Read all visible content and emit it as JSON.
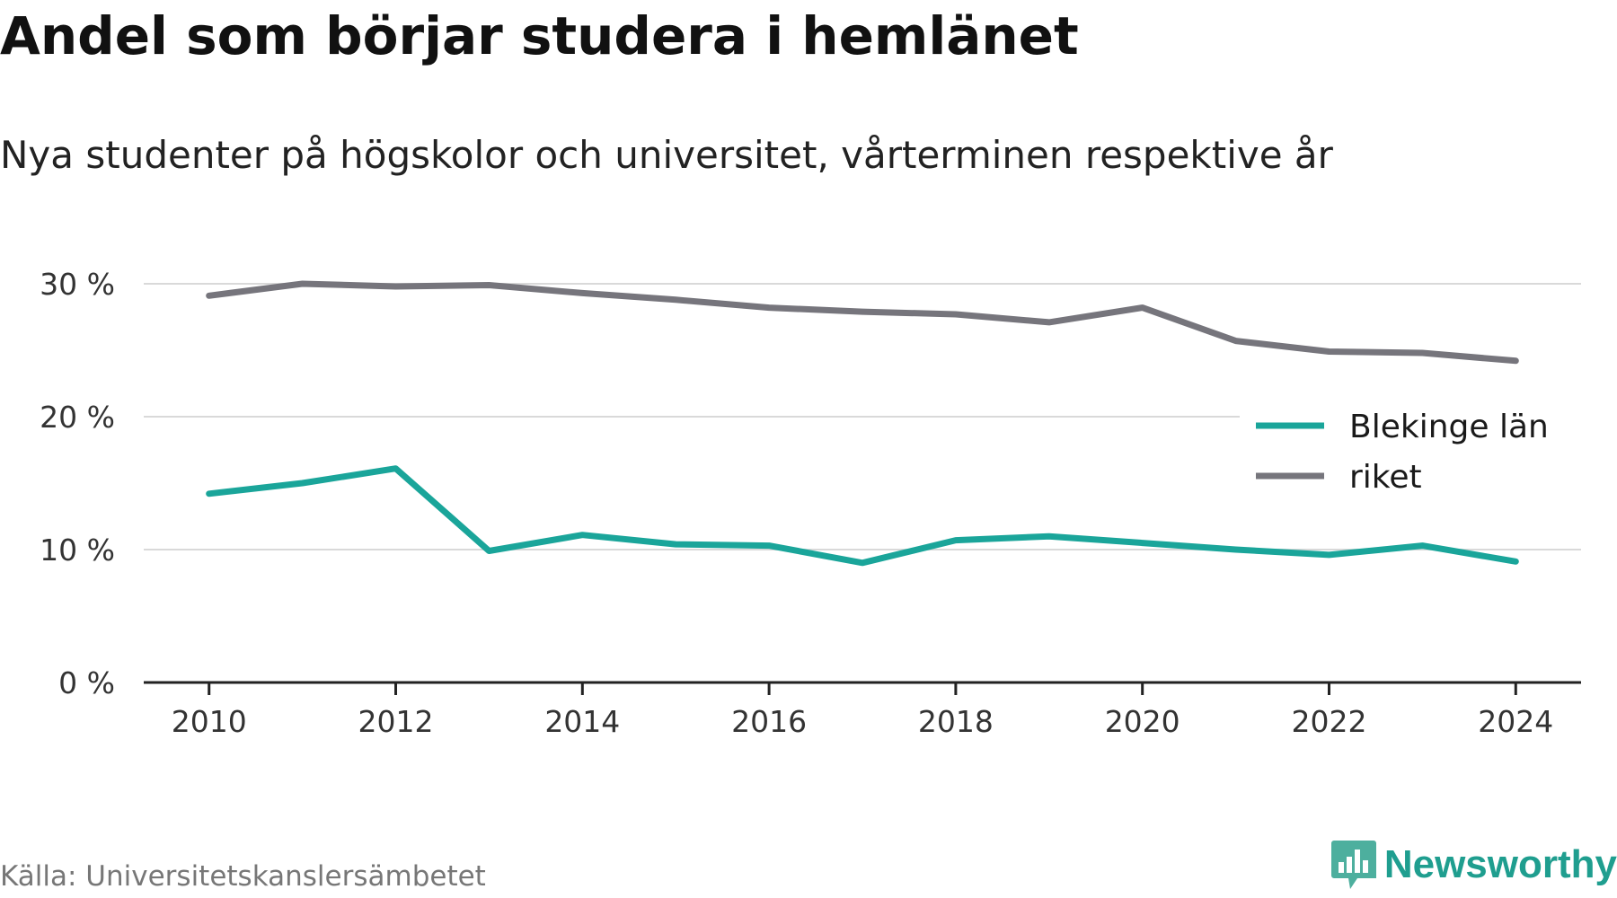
{
  "title": "Andel som börjar studera i hemlänet",
  "subtitle": "Nya studenter på högskolor och universitet, vårterminen respektive år",
  "source": "Källa: Universitetskanslersämbetet",
  "brand": {
    "name": "Newsworthy",
    "icon": "newsworthy-logo-icon",
    "color": "#1f9e8f"
  },
  "chart_data": {
    "type": "line",
    "x": [
      2010,
      2011,
      2012,
      2013,
      2014,
      2015,
      2016,
      2017,
      2018,
      2019,
      2020,
      2021,
      2022,
      2023,
      2024
    ],
    "series": [
      {
        "name": "Blekinge län",
        "color": "#1aa59a",
        "values": [
          14.2,
          15.0,
          16.1,
          9.9,
          11.1,
          10.4,
          10.3,
          9.0,
          10.7,
          11.0,
          10.5,
          10.0,
          9.6,
          10.3,
          9.1
        ]
      },
      {
        "name": "riket",
        "color": "#76757c",
        "values": [
          29.1,
          30.0,
          29.8,
          29.9,
          29.3,
          28.8,
          28.2,
          27.9,
          27.7,
          27.1,
          28.2,
          25.7,
          24.9,
          24.8,
          24.2
        ]
      }
    ],
    "xlim": [
      2009.3,
      2024.7
    ],
    "ylim": [
      0,
      30
    ],
    "xticks": [
      "2010",
      "2012",
      "2014",
      "2016",
      "2018",
      "2020",
      "2022",
      "2024"
    ],
    "yticks": [
      "0 %",
      "10 %",
      "20 %",
      "30 %"
    ],
    "grid": true,
    "legend": "right"
  }
}
